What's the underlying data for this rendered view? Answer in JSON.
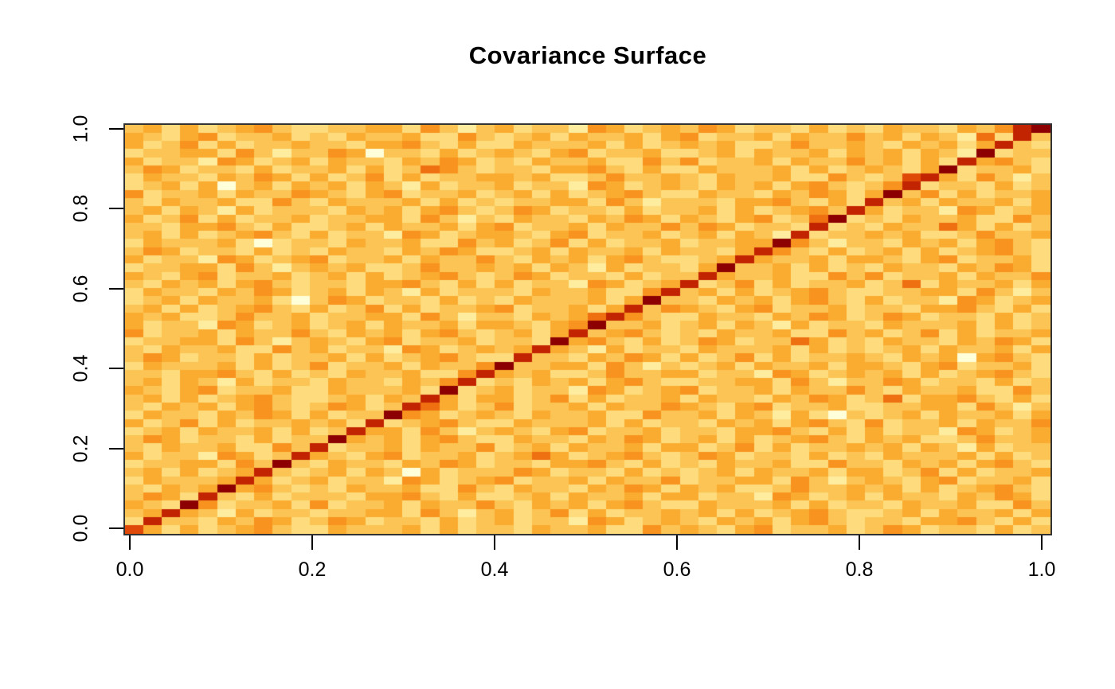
{
  "figure": {
    "title": "Covariance Surface"
  },
  "chart_data": {
    "type": "heatmap",
    "title": "Covariance Surface",
    "xlabel": "",
    "ylabel": "",
    "xlim": [
      0,
      1
    ],
    "ylim": [
      0,
      1
    ],
    "x_ticks": [
      "0.0",
      "0.2",
      "0.4",
      "0.6",
      "0.8",
      "1.0"
    ],
    "y_ticks": [
      "0.0",
      "0.2",
      "0.4",
      "0.6",
      "0.8",
      "1.0"
    ],
    "n_cols": 50,
    "n_rows": 50,
    "grid_on": false,
    "legend": "none",
    "cell_encoding": "each digit 0-9 encodes the covariance level from low (0 = pale cream) to high (9 = dark red); rows listed top (y=1.0) to bottom (y=0.0), 50 chars per row for x=0..1; high-variance ridge runs along the diagonal y=x",
    "palette": [
      "#FFFFD9",
      "#FEEC9F",
      "#FEDC7E",
      "#FCC454",
      "#FAAC30",
      "#F7931E",
      "#EF7010",
      "#E04A08",
      "#C22402",
      "#8C0002"
    ],
    "rows": [
      "34242345322334425313423315423435423324232433243589",
      "43245233423243342253234243342452334243353424316283",
      "42352423343324453242243334242343422353343243424832",
      "23344253133540332423432452334223424334243424319233",
      "42331542342433243542324334225352334243353424284532",
      "35423324233424236532332445324224333424234324923342",
      "24332435424235242334434223533432433422532378425313",
      "23424034243424314233423315423432434245323582332423",
      "52334243354324523342342423453224332435424935242334",
      "32433422532433342423233442531333244532428342433424",
      "34243142333243424532354233242334242345384233154234",
      "42352423342334425313243324354243245236923243342253",
      "33244532422342433424523342433535423328232433642423",
      "34242345324233154234432452334234243182334342235334",
      "24333420233243342253423524233423344953133243424532",
      "35423324232433243542234243342433248532423424234532",
      "42331542345233424335324342453223484334244324523342",
      "23344253134342235334342431423324933424232433243542",
      "43245233423424234532354233242338433422535233424335",
      "32434245323324453242423315423482352423342362433424",
      "24332435423424314233324334225834242345322334425313",
      "23424334203542332423243334249332434245324233154234",
      "34242345324235242334523342483543245233423324453242",
      "43422353342334425313324346853224332435423542332423",
      "42331542342342433424432459334234243142332433342423",
      "52334243353243424532342483453232433422534235242334",
      "23344253134324523342332945324235423364232433243542",
      "32433422534233154234348431423324333424232342433424",
      "35423324233424234532283324354242352423343243404532",
      "24333424235233424335933442531323424334244324523342",
      "33244532423243342258434223533442331542343424234532",
      "34243142332433243582324342453223344253133542332423",
      "43245233422433342923423315423452334243353243342253",
      "34242345322342438424423524233424332435423624453242",
      "32434245323542386423523342433543245233422334425313",
      "24332435424233954234324334225334243142032342433424",
      "42352423343428234532243334242332434245325233424335",
      "23424334242384425313432452334233244532424233154234",
      "35423324233943424532243324354234242345324342235334",
      "32433422538233424335234243342442352423343424314233",
      "42331542384324523342346423453235423324232433342423",
      "23344253932433243542332445324232433422533243424532",
      "34242348323424304233354233242323424334244235242334",
      "24333484234233154234523342433523344253134324523342",
      "32434945323243342253243324354243422353343424234532",
      "35428324233324453242234243342442331542342433243542",
      "43295233425233424335324342453224333424233243342253",
      "34843142332334425313423524233434242345322342433424",
      "28332435423542332423423315423432434245323324453242",
      "74242345322433342423324334225343245233423542332423"
    ]
  }
}
